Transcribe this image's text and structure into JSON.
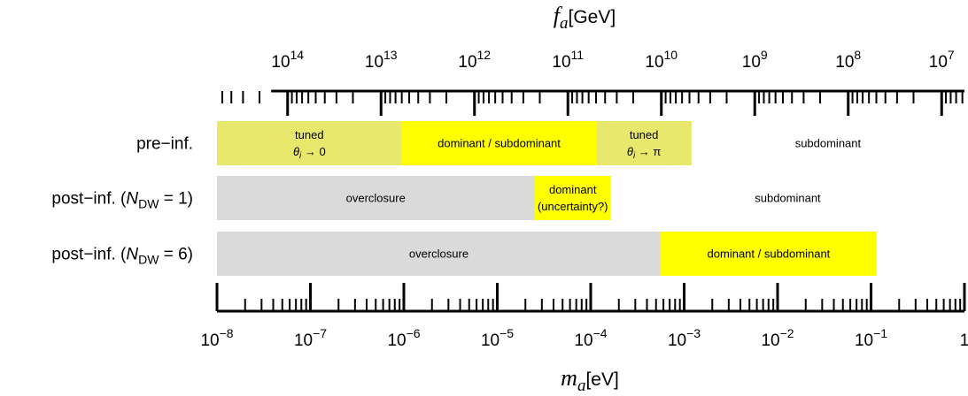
{
  "chart_data": {
    "type": "bar",
    "bottom_axis": {
      "title_symbol": "m",
      "title_subscript": "a",
      "title_unit": "[eV]",
      "scale": "log",
      "range": [
        1e-08,
        1
      ],
      "tick_labels": [
        {
          "value": 1e-08,
          "base": "10",
          "exp": "−8"
        },
        {
          "value": 1e-07,
          "base": "10",
          "exp": "−7"
        },
        {
          "value": 1e-06,
          "base": "10",
          "exp": "−6"
        },
        {
          "value": 1e-05,
          "base": "10",
          "exp": "−5"
        },
        {
          "value": 0.0001,
          "base": "10",
          "exp": "−4"
        },
        {
          "value": 0.001,
          "base": "10",
          "exp": "−3"
        },
        {
          "value": 0.01,
          "base": "10",
          "exp": "−2"
        },
        {
          "value": 0.1,
          "base": "10",
          "exp": "−1"
        },
        {
          "value": 1,
          "base": "1",
          "exp": ""
        }
      ]
    },
    "top_axis": {
      "title_symbol": "f",
      "title_subscript": "a",
      "title_unit": "[GeV]",
      "scale": "log",
      "reversed": true,
      "tick_labels": [
        {
          "value": 100000000000000.0,
          "base": "10",
          "exp": "14"
        },
        {
          "value": 10000000000000.0,
          "base": "10",
          "exp": "13"
        },
        {
          "value": 1000000000000.0,
          "base": "10",
          "exp": "12"
        },
        {
          "value": 100000000000.0,
          "base": "10",
          "exp": "11"
        },
        {
          "value": 10000000000.0,
          "base": "10",
          "exp": "10"
        },
        {
          "value": 1000000000.0,
          "base": "10",
          "exp": "9"
        },
        {
          "value": 100000000.0,
          "base": "10",
          "exp": "8"
        },
        {
          "value": 10000000.0,
          "base": "10",
          "exp": "7"
        }
      ]
    },
    "rows": [
      {
        "label_main": "pre−inf.",
        "label_open": "",
        "label_sub": "",
        "label_close": "",
        "segments": [
          {
            "from": 1e-08,
            "to": 9.5e-07,
            "color": "#e8e86c",
            "lines": [
              {
                "text": "tuned"
              },
              {
                "sym": "θ",
                "sub": "i",
                "after": " → 0"
              }
            ]
          },
          {
            "from": 9.5e-07,
            "to": 0.000115,
            "color": "#ffff00",
            "lines": [
              {
                "text": "dominant / subdominant"
              }
            ]
          },
          {
            "from": 0.000115,
            "to": 0.0012,
            "color": "#e8e86c",
            "lines": [
              {
                "text": "tuned"
              },
              {
                "sym": "θ",
                "sub": "i",
                "after": " → π"
              }
            ]
          },
          {
            "from": 0.0012,
            "to": 1,
            "color": "#ffffff",
            "lines": [
              {
                "text": "subdominant"
              }
            ]
          }
        ]
      },
      {
        "label_main": "post−inf. (",
        "label_open": "N",
        "label_sub": "DW",
        "label_close": " = 1)",
        "segments": [
          {
            "from": 1e-08,
            "to": 2.5e-05,
            "color": "#dadada",
            "lines": [
              {
                "text": "overclosure"
              }
            ]
          },
          {
            "from": 2.5e-05,
            "to": 0.000165,
            "color": "#ffff00",
            "lines": [
              {
                "text": "dominant"
              },
              {
                "text": "(uncertainty?)"
              }
            ]
          },
          {
            "from": 0.000165,
            "to": 1,
            "color": "#ffffff",
            "lines": [
              {
                "text": "subdominant"
              }
            ]
          }
        ]
      },
      {
        "label_main": "post−inf. (",
        "label_open": "N",
        "label_sub": "DW",
        "label_close": " = 6)",
        "segments": [
          {
            "from": 1e-08,
            "to": 0.00056,
            "color": "#dadada",
            "lines": [
              {
                "text": "overclosure"
              }
            ]
          },
          {
            "from": 0.00056,
            "to": 0.115,
            "color": "#ffff00",
            "lines": [
              {
                "text": "dominant / subdominant"
              }
            ]
          }
        ]
      }
    ],
    "top_axis_conversion": "f_a = 5.7e12 GeV / (m_a / 1e-6 eV)",
    "grid": false,
    "legend": "none"
  }
}
